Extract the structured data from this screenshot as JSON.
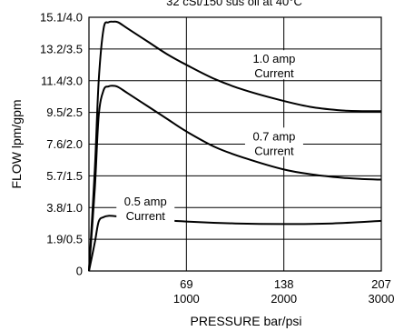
{
  "chart_data": {
    "type": "line",
    "title": "32 cSt/150 sus oil at 40°C",
    "xlabel": "PRESSURE bar/psi",
    "ylabel": "FLOW lpm/gpm",
    "xlim": [
      0,
      3000
    ],
    "ylim": [
      0,
      4.0
    ],
    "grid": true,
    "x_ticks": [
      {
        "value": 1000,
        "label_top": "69",
        "label_bottom": "1000"
      },
      {
        "value": 2000,
        "label_top": "138",
        "label_bottom": "2000"
      },
      {
        "value": 3000,
        "label_top": "207",
        "label_bottom": "3000"
      }
    ],
    "y_ticks": [
      {
        "value": 0,
        "label": "0"
      },
      {
        "value": 0.5,
        "label": "1.9/0.5"
      },
      {
        "value": 1.0,
        "label": "3.8/1.0"
      },
      {
        "value": 1.5,
        "label": "5.7/1.5"
      },
      {
        "value": 2.0,
        "label": "7.6/2.0"
      },
      {
        "value": 2.5,
        "label": "9.5/2.5"
      },
      {
        "value": 3.0,
        "label": "11.4/3.0"
      },
      {
        "value": 3.5,
        "label": "13.2/3.5"
      },
      {
        "value": 4.0,
        "label": "15.1/4.0"
      }
    ],
    "series": [
      {
        "name": "1.0 amp Current",
        "label_lines": [
          "1.0 amp",
          "Current"
        ],
        "x": [
          0,
          60,
          100,
          150,
          200,
          250,
          300,
          400,
          600,
          800,
          1000,
          1300,
          1600,
          2000,
          2300,
          2600,
          2800,
          3000
        ],
        "y": [
          0,
          1.6,
          3.0,
          3.82,
          3.92,
          3.93,
          3.92,
          3.82,
          3.62,
          3.42,
          3.25,
          3.02,
          2.85,
          2.68,
          2.58,
          2.53,
          2.52,
          2.52
        ]
      },
      {
        "name": "0.7 amp Current",
        "label_lines": [
          "0.7 amp",
          "Current"
        ],
        "x": [
          0,
          60,
          100,
          150,
          200,
          250,
          300,
          400,
          600,
          800,
          1000,
          1300,
          1600,
          2000,
          2300,
          2600,
          2800,
          3000
        ],
        "y": [
          0,
          1.3,
          2.45,
          2.85,
          2.91,
          2.92,
          2.9,
          2.8,
          2.6,
          2.4,
          2.2,
          1.95,
          1.78,
          1.6,
          1.52,
          1.47,
          1.45,
          1.44
        ]
      },
      {
        "name": "0.5 amp Current",
        "label_lines": [
          "0.5 amp",
          "Current"
        ],
        "x": [
          0,
          60,
          100,
          150,
          200,
          300,
          500,
          1000,
          1500,
          2000,
          2500,
          3000
        ],
        "y": [
          0,
          0.45,
          0.78,
          0.85,
          0.87,
          0.86,
          0.83,
          0.78,
          0.75,
          0.74,
          0.75,
          0.79
        ]
      }
    ]
  }
}
